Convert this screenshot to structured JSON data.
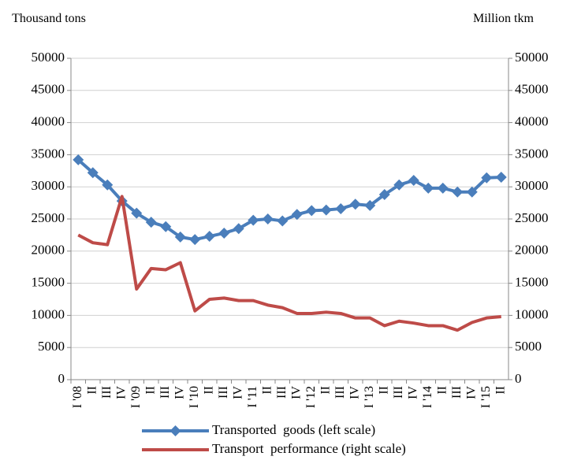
{
  "chart_data": {
    "type": "line",
    "y_label": "Thousand tons",
    "y2_label": "Million tkm",
    "categories": [
      "I '08",
      "II",
      "III",
      "IV",
      "I '09",
      "II",
      "III",
      "IV",
      "I '10",
      "II",
      "III",
      "IV",
      "I '11",
      "II",
      "III",
      "IV",
      "I '12",
      "II",
      "III",
      "IV",
      "I '13",
      "II",
      "III",
      "IV",
      "I '14",
      "II",
      "III",
      "IV",
      "I '15",
      "II"
    ],
    "series": [
      {
        "name": "Transported  goods (left scale)",
        "color": "#4a7ebb",
        "marker": "diamond",
        "axis": "y",
        "values": [
          34200,
          32200,
          30300,
          27800,
          25900,
          24500,
          23800,
          22200,
          21800,
          22300,
          22800,
          23500,
          24800,
          25000,
          24700,
          25700,
          26300,
          26400,
          26600,
          27300,
          27100,
          28800,
          30300,
          31000,
          29800,
          29800,
          29200,
          29200,
          31400,
          31500
        ]
      },
      {
        "name": "Transport  performance (right scale)",
        "color": "#be4b48",
        "axis": "y2",
        "values": [
          22500,
          21300,
          21000,
          28500,
          14100,
          17300,
          17100,
          18200,
          10700,
          12500,
          12700,
          12300,
          12300,
          11600,
          11200,
          10300,
          10300,
          10500,
          10300,
          9600,
          9600,
          8400,
          9100,
          8800,
          8400,
          8400,
          7700,
          8900,
          9600,
          9800
        ]
      }
    ],
    "ylim": [
      0,
      50000
    ],
    "yticks": [
      0,
      5000,
      10000,
      15000,
      20000,
      25000,
      30000,
      35000,
      40000,
      45000,
      50000
    ],
    "y2lim": [
      0,
      50000
    ],
    "y2ticks": [
      0,
      5000,
      10000,
      15000,
      20000,
      25000,
      30000,
      35000,
      40000,
      45000,
      50000
    ],
    "grid": true,
    "legend": "bottom"
  }
}
